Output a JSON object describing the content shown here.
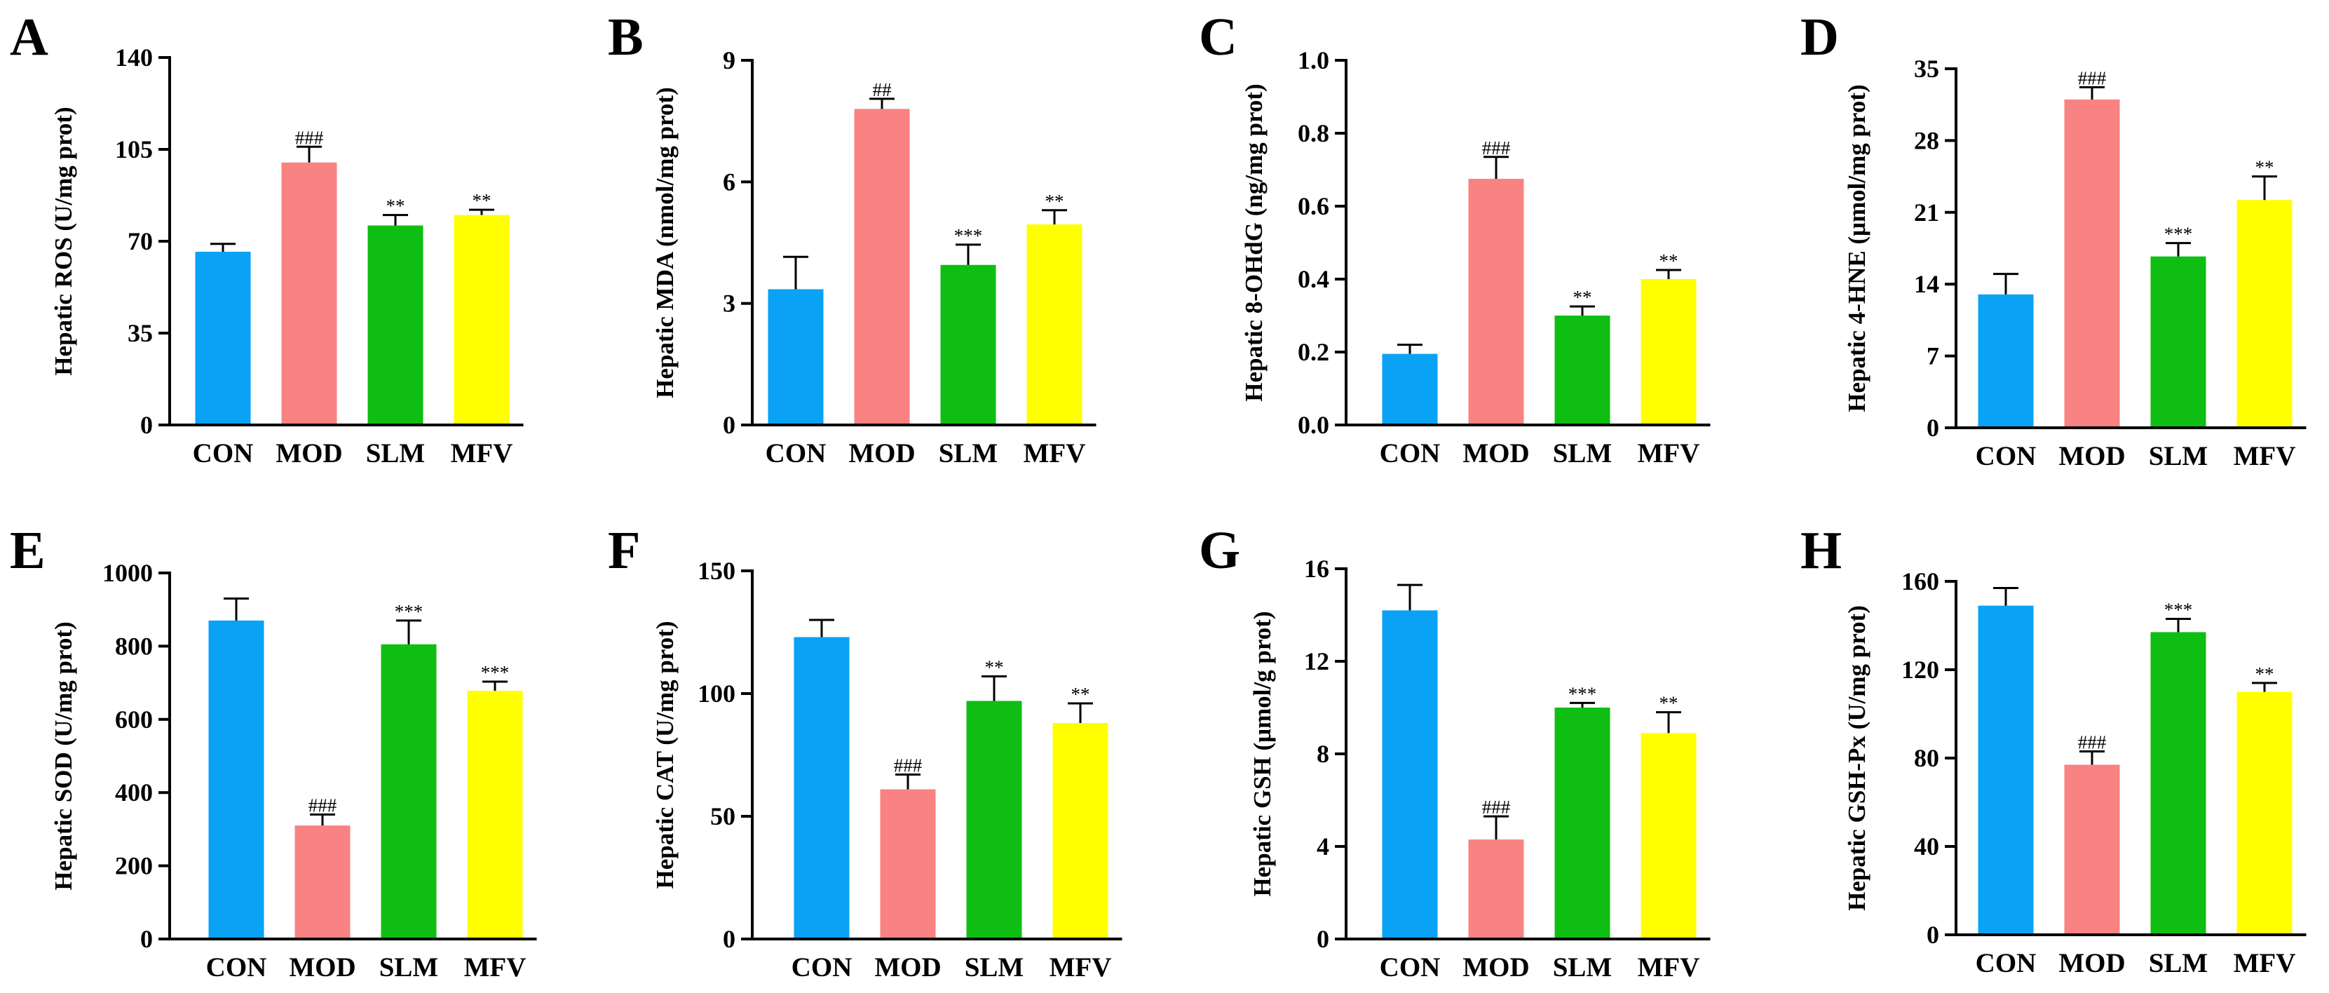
{
  "figure": {
    "colors": {
      "CON": "#0aa2f5",
      "MOD": "#f88382",
      "SLM": "#0fbe12",
      "MFV": "#ffff00",
      "axis": "#000000"
    }
  },
  "chart_data": [
    {
      "panel": "A",
      "type": "bar",
      "ylabel": "Hepatic ROS (U/mg prot)",
      "categories": [
        "CON",
        "MOD",
        "SLM",
        "MFV"
      ],
      "values": [
        66,
        100,
        76,
        80
      ],
      "errors": [
        3,
        6,
        4,
        2
      ],
      "annotations": [
        "",
        "###",
        "**",
        "**"
      ],
      "ylim": [
        0,
        140
      ],
      "yticks": [
        "0",
        "35",
        "70",
        "105",
        "140"
      ]
    },
    {
      "panel": "B",
      "type": "bar",
      "ylabel": "Hepatic MDA (nmol/mg prot)",
      "categories": [
        "CON",
        "MOD",
        "SLM",
        "MFV"
      ],
      "values": [
        3.35,
        7.8,
        3.95,
        4.95
      ],
      "errors": [
        0.8,
        0.25,
        0.5,
        0.35
      ],
      "annotations": [
        "",
        "##",
        "***",
        "**"
      ],
      "ylim": [
        0,
        9
      ],
      "yticks": [
        "0",
        "3",
        "6",
        "9"
      ]
    },
    {
      "panel": "C",
      "type": "bar",
      "ylabel": "Hepatic 8-OHdG (ng/mg prot)",
      "categories": [
        "CON",
        "MOD",
        "SLM",
        "MFV"
      ],
      "values": [
        0.195,
        0.675,
        0.3,
        0.4
      ],
      "errors": [
        0.025,
        0.06,
        0.025,
        0.025
      ],
      "annotations": [
        "",
        "###",
        "**",
        "**"
      ],
      "ylim": [
        0,
        1.0
      ],
      "yticks": [
        "0.0",
        "0.2",
        "0.4",
        "0.6",
        "0.8",
        "1.0"
      ]
    },
    {
      "panel": "D",
      "type": "bar",
      "ylabel": "Hepatic 4-HNE (μmol/mg prot)",
      "categories": [
        "CON",
        "MOD",
        "SLM",
        "MFV"
      ],
      "values": [
        13,
        32,
        16.7,
        22.2
      ],
      "errors": [
        2,
        1.2,
        1.3,
        2.3
      ],
      "annotations": [
        "",
        "###",
        "***",
        "**"
      ],
      "ylim": [
        0,
        35
      ],
      "yticks": [
        "0",
        "7",
        "14",
        "21",
        "28",
        "35"
      ]
    },
    {
      "panel": "E",
      "type": "bar",
      "ylabel": "Hepatic SOD (U/mg prot)",
      "categories": [
        "CON",
        "MOD",
        "SLM",
        "MFV"
      ],
      "values": [
        870,
        310,
        805,
        678
      ],
      "errors": [
        60,
        30,
        65,
        25
      ],
      "annotations": [
        "",
        "###",
        "***",
        "***"
      ],
      "ylim": [
        0,
        1000
      ],
      "yticks": [
        "0",
        "200",
        "400",
        "600",
        "800",
        "1000"
      ]
    },
    {
      "panel": "F",
      "type": "bar",
      "ylabel": "Hepatic CAT (U/mg prot)",
      "categories": [
        "CON",
        "MOD",
        "SLM",
        "MFV"
      ],
      "values": [
        123,
        61,
        97,
        88
      ],
      "errors": [
        7,
        6,
        10,
        8
      ],
      "annotations": [
        "",
        "###",
        "**",
        "**"
      ],
      "ylim": [
        0,
        150
      ],
      "yticks": [
        "0",
        "50",
        "100",
        "150"
      ]
    },
    {
      "panel": "G",
      "type": "bar",
      "ylabel": "Hepatic GSH (μmol/g prot)",
      "categories": [
        "CON",
        "MOD",
        "SLM",
        "MFV"
      ],
      "values": [
        14.2,
        4.3,
        10,
        8.9
      ],
      "errors": [
        1.1,
        1.0,
        0.2,
        0.9
      ],
      "annotations": [
        "",
        "###",
        "***",
        "**"
      ],
      "ylim": [
        0,
        16
      ],
      "yticks": [
        "0",
        "4",
        "8",
        "12",
        "16"
      ]
    },
    {
      "panel": "H",
      "type": "bar",
      "ylabel": "Hepatic GSH-Px (U/mg prot)",
      "categories": [
        "CON",
        "MOD",
        "SLM",
        "MFV"
      ],
      "values": [
        149,
        77,
        137,
        110
      ],
      "errors": [
        8,
        6,
        6,
        4
      ],
      "annotations": [
        "",
        "###",
        "***",
        "**"
      ],
      "ylim": [
        0,
        160
      ],
      "yticks": [
        "0",
        "40",
        "80",
        "120",
        "160"
      ]
    }
  ]
}
